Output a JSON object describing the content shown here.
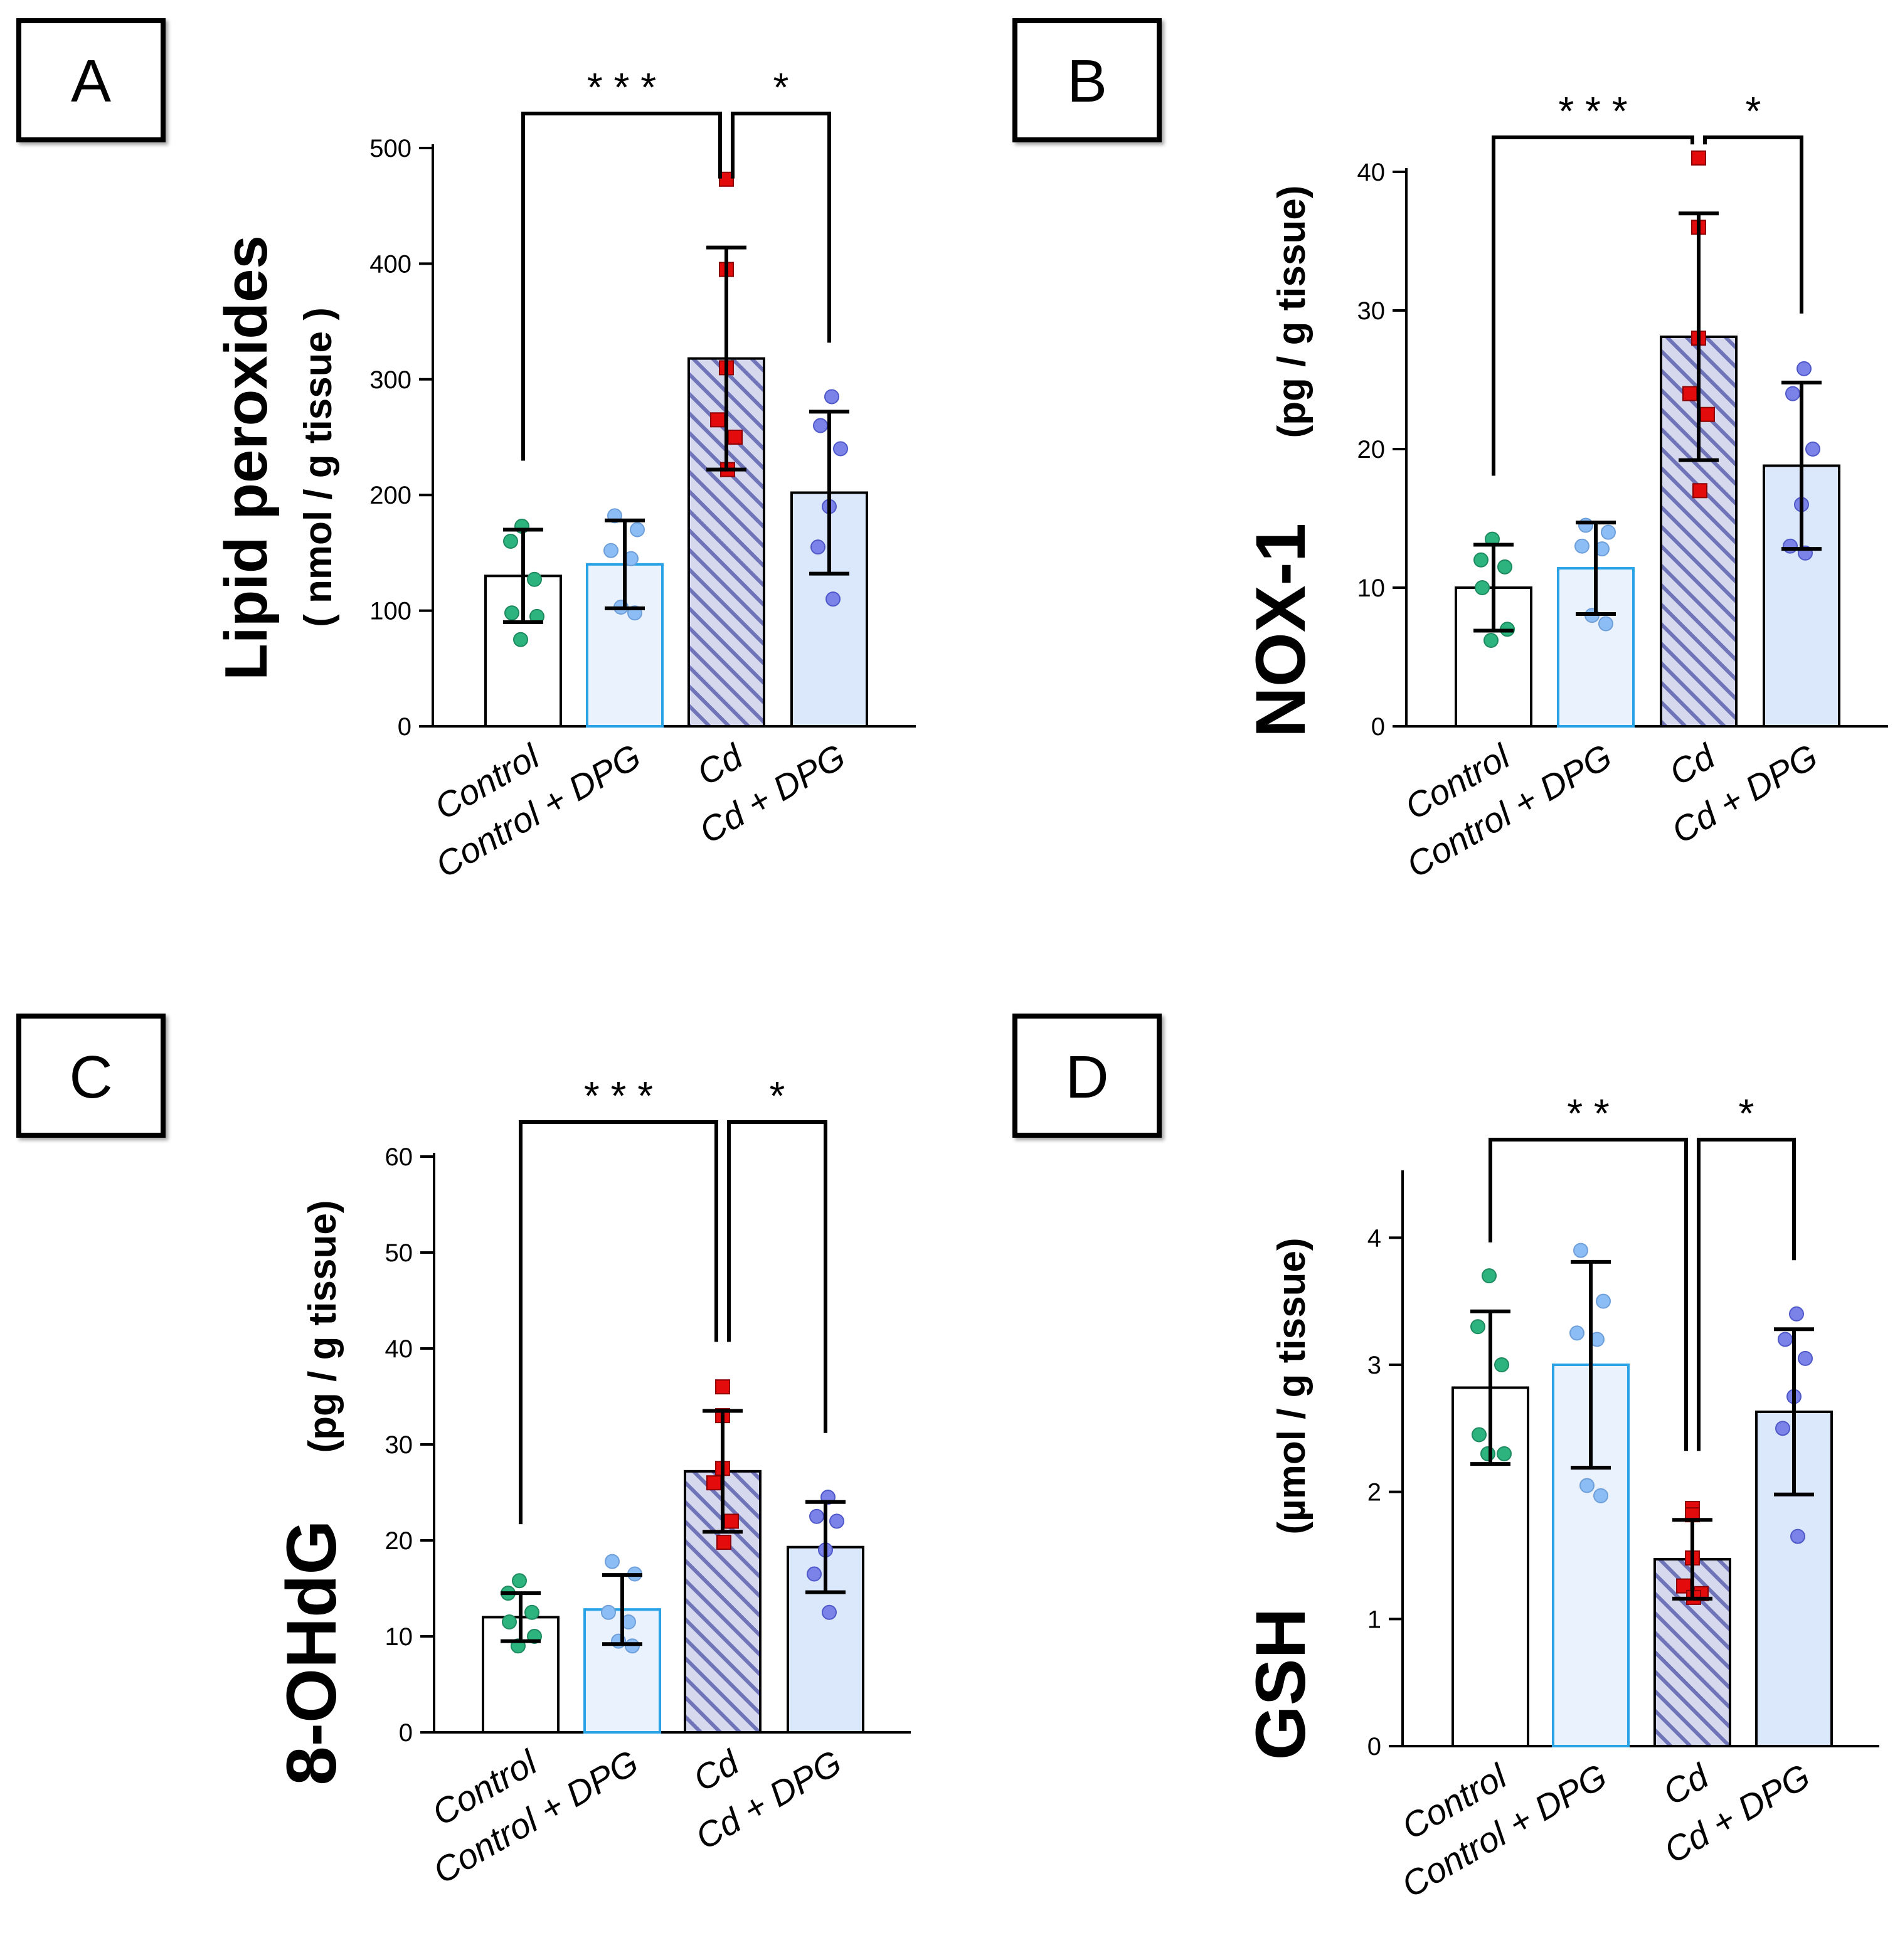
{
  "chart_data": [
    {
      "panel": "A",
      "type": "bar",
      "ylabel_main": "Lipid peroxides",
      "ylabel_unit": "( nmol / g tissue )",
      "categories": [
        "Control",
        "Control + DPG",
        "Cd",
        "Cd + DPG"
      ],
      "means": [
        130,
        140,
        318,
        202
      ],
      "sd": [
        40,
        38,
        96,
        70
      ],
      "points": [
        [
          173,
          160,
          127,
          98,
          95,
          75
        ],
        [
          182,
          170,
          152,
          145,
          103,
          98
        ],
        [
          473,
          395,
          310,
          265,
          250,
          222
        ],
        [
          285,
          260,
          240,
          190,
          155,
          110
        ]
      ],
      "yticks": [
        0,
        100,
        200,
        300,
        400,
        500
      ],
      "ylim": [
        0,
        500
      ],
      "significance": [
        {
          "from": 0,
          "to": 2,
          "label": "* * *"
        },
        {
          "from": 2,
          "to": 3,
          "label": "*"
        }
      ]
    },
    {
      "panel": "B",
      "type": "bar",
      "ylabel_main": "NOX-1",
      "ylabel_unit": "(pg / g tissue)",
      "categories": [
        "Control",
        "Control + DPG",
        "Cd",
        "Cd + DPG"
      ],
      "means": [
        10,
        11.4,
        28.1,
        18.8
      ],
      "sd": [
        3.1,
        3.3,
        8.9,
        6.0
      ],
      "points": [
        [
          13.5,
          12,
          11.5,
          10,
          7,
          6.2
        ],
        [
          14.5,
          14,
          13,
          12.8,
          8,
          7.4
        ],
        [
          41,
          36,
          28,
          24,
          22.5,
          17
        ],
        [
          25.8,
          24,
          20,
          16,
          13,
          12.5
        ]
      ],
      "yticks": [
        0,
        10,
        20,
        30,
        40
      ],
      "ylim": [
        0,
        40
      ],
      "significance": [
        {
          "from": 0,
          "to": 2,
          "label": "* * *"
        },
        {
          "from": 2,
          "to": 3,
          "label": "*"
        }
      ]
    },
    {
      "panel": "C",
      "type": "bar",
      "ylabel_main": "8-OHdG",
      "ylabel_unit": "(pg / g tissue)",
      "categories": [
        "Control",
        "Control + DPG",
        "Cd",
        "Cd + DPG"
      ],
      "means": [
        12,
        12.8,
        27.2,
        19.3
      ],
      "sd": [
        2.5,
        3.6,
        6.3,
        4.7
      ],
      "points": [
        [
          15.8,
          14.5,
          12.5,
          11.5,
          10,
          9
        ],
        [
          17.8,
          16.5,
          12.5,
          11.5,
          9.5,
          9
        ],
        [
          36,
          33,
          27.5,
          26,
          22,
          19.8
        ],
        [
          24.5,
          22.5,
          22,
          19,
          16.5,
          12.5
        ]
      ],
      "yticks": [
        0,
        10,
        20,
        30,
        40,
        50,
        60
      ],
      "ylim": [
        0,
        60
      ],
      "significance": [
        {
          "from": 0,
          "to": 2,
          "label": "* * *"
        },
        {
          "from": 2,
          "to": 3,
          "label": "*"
        }
      ]
    },
    {
      "panel": "D",
      "type": "bar",
      "ylabel_main": "GSH",
      "ylabel_unit": "(µmol / g tissue)",
      "categories": [
        "Control",
        "Control + DPG",
        "Cd",
        "Cd + DPG"
      ],
      "means": [
        2.82,
        3.0,
        1.47,
        2.63
      ],
      "sd": [
        0.6,
        0.81,
        0.31,
        0.65
      ],
      "points": [
        [
          3.7,
          3.3,
          3.0,
          2.45,
          2.3,
          2.3
        ],
        [
          3.9,
          3.5,
          3.25,
          3.2,
          2.05,
          1.97
        ],
        [
          1.87,
          1.82,
          1.48,
          1.26,
          1.2,
          1.17
        ],
        [
          3.4,
          3.2,
          3.05,
          2.75,
          2.5,
          1.65
        ]
      ],
      "yticks": [
        0,
        1,
        2,
        3,
        4
      ],
      "ylim": [
        0,
        4.5
      ],
      "significance": [
        {
          "from": 0,
          "to": 2,
          "label": "* *"
        },
        {
          "from": 2,
          "to": 3,
          "label": "*"
        }
      ]
    }
  ],
  "colors": {
    "axis": "#000000",
    "bar_fill": [
      "#ffffff",
      "#eaf2fd",
      "#d6d8ee",
      "#dbe7fa"
    ],
    "bar_stroke": [
      "#000000",
      "#29a3e6",
      "#000000",
      "#000000"
    ],
    "hatch": "#6e74b7",
    "points": [
      "#2db37e",
      "#8dbdf5",
      "#e30b0b",
      "#7c83e8"
    ],
    "point_stroke": [
      "#1d8a5f",
      "#6f9fd9",
      "#8b0000",
      "#4f58c9"
    ]
  }
}
